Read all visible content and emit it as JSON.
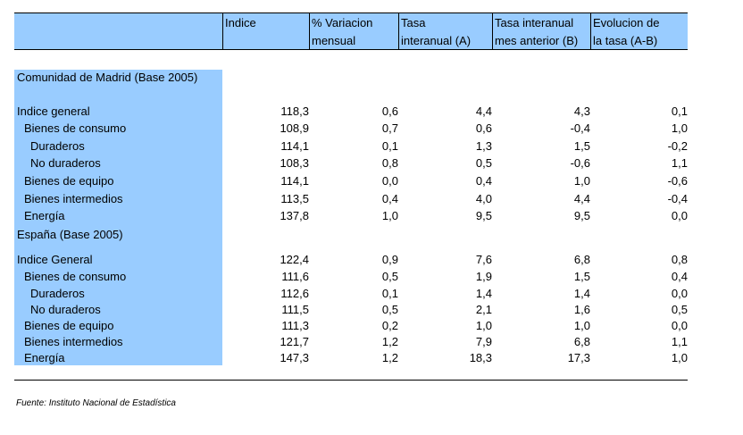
{
  "headers": [
    {
      "line1": "",
      "line2": ""
    },
    {
      "line1": "Indice",
      "line2": ""
    },
    {
      "line1": "% Variacion",
      "line2": "mensual"
    },
    {
      "line1": "Tasa",
      "line2": "interanual (A)"
    },
    {
      "line1": "Tasa interanual",
      "line2": "mes anterior (B)"
    },
    {
      "line1": "Evolucion de",
      "line2": "la tasa (A-B)"
    }
  ],
  "rows": [
    {
      "label": "Comunidad de Madrid (Base 2005)",
      "values": [
        "",
        "",
        "",
        "",
        ""
      ]
    },
    {
      "label": "Indice general",
      "values": [
        "118,3",
        "0,6",
        "4,4",
        "4,3",
        "0,1"
      ]
    },
    {
      "label": "Bienes de consumo",
      "values": [
        "108,9",
        "0,7",
        "0,6",
        "-0,4",
        "1,0"
      ]
    },
    {
      "label": "Duraderos",
      "values": [
        "114,1",
        "0,1",
        "1,3",
        "1,5",
        "-0,2"
      ]
    },
    {
      "label": "No duraderos",
      "values": [
        "108,3",
        "0,8",
        "0,5",
        "-0,6",
        "1,1"
      ]
    },
    {
      "label": "Bienes de equipo",
      "values": [
        "114,1",
        "0,0",
        "0,4",
        "1,0",
        "-0,6"
      ]
    },
    {
      "label": "Bienes intermedios",
      "values": [
        "113,5",
        "0,4",
        "4,0",
        "4,4",
        "-0,4"
      ]
    },
    {
      "label": "Energía",
      "values": [
        "137,8",
        "1,0",
        "9,5",
        "9,5",
        "0,0"
      ]
    },
    {
      "label": "España (Base 2005)",
      "values": [
        "",
        "",
        "",
        "",
        ""
      ]
    },
    {
      "label": "Indice General",
      "values": [
        "122,4",
        "0,9",
        "7,6",
        "6,8",
        "0,8"
      ]
    },
    {
      "label": "Bienes de consumo",
      "values": [
        "111,6",
        "0,5",
        "1,9",
        "1,5",
        "0,4"
      ]
    },
    {
      "label": "Duraderos",
      "values": [
        "112,6",
        "0,1",
        "1,4",
        "1,4",
        "0,0"
      ]
    },
    {
      "label": "No duraderos",
      "values": [
        "111,5",
        "0,5",
        "2,1",
        "1,6",
        "0,5"
      ]
    },
    {
      "label": "Bienes de equipo",
      "values": [
        "111,3",
        "0,2",
        "1,0",
        "1,0",
        "0,0"
      ]
    },
    {
      "label": "Bienes intermedios",
      "values": [
        "121,7",
        "1,2",
        "7,9",
        "6,8",
        "1,1"
      ]
    },
    {
      "label": "Energía",
      "values": [
        "147,3",
        "1,2",
        "18,3",
        "17,3",
        "1,0"
      ]
    }
  ],
  "source": "Fuente: Instituto Nacional de Estadística"
}
